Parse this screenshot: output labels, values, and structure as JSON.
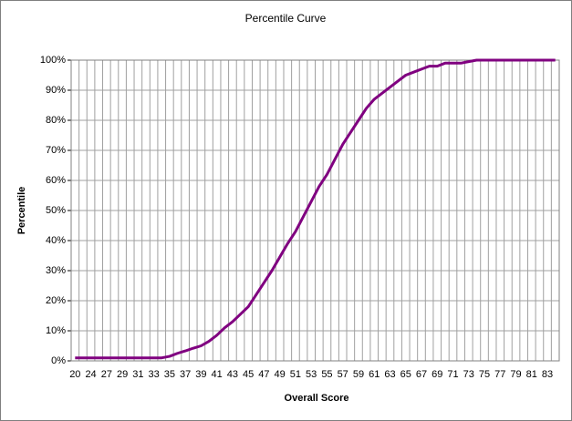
{
  "chart_data": {
    "type": "line",
    "title": "Percentile Curve",
    "x_label": "Overall Score",
    "y_label": "Percentile",
    "categories": [
      "20",
      null,
      "24",
      null,
      "27",
      null,
      "29",
      null,
      "31",
      null,
      "33",
      null,
      "35",
      null,
      "37",
      null,
      "39",
      null,
      "41",
      null,
      "43",
      null,
      "45",
      null,
      "47",
      null,
      "49",
      null,
      "51",
      null,
      "53",
      null,
      "55",
      null,
      "57",
      null,
      "59",
      null,
      "61",
      null,
      "63",
      null,
      "65",
      null,
      "67",
      null,
      "69",
      null,
      "71",
      null,
      "73",
      null,
      "75",
      null,
      "77",
      null,
      "79",
      null,
      "81",
      null,
      "83",
      null
    ],
    "values": [
      1,
      1,
      1,
      1,
      1,
      1,
      1,
      1,
      1,
      1,
      1,
      1,
      1.5,
      2.5,
      3.3,
      4.2,
      5,
      6.5,
      8.5,
      11,
      13,
      15.5,
      18,
      22,
      26,
      30,
      34.5,
      39,
      43,
      48,
      53,
      58,
      62,
      67,
      72,
      76,
      80,
      84,
      87,
      89,
      91,
      93,
      95,
      96,
      97,
      98,
      98,
      99,
      99,
      99,
      99.5,
      100,
      100,
      100,
      100,
      100,
      100,
      100,
      100,
      100,
      100,
      100
    ],
    "color": "#800080",
    "ylim": [
      0,
      100
    ],
    "yticks": [
      {
        "value": 0,
        "label": "0%"
      },
      {
        "value": 10,
        "label": "10%"
      },
      {
        "value": 20,
        "label": "20%"
      },
      {
        "value": 30,
        "label": "30%"
      },
      {
        "value": 40,
        "label": "40%"
      },
      {
        "value": 50,
        "label": "50%"
      },
      {
        "value": 60,
        "label": "60%"
      },
      {
        "value": 70,
        "label": "70%"
      },
      {
        "value": 80,
        "label": "80%"
      },
      {
        "value": 90,
        "label": "90%"
      },
      {
        "value": 100,
        "label": "100%"
      }
    ],
    "grid": true
  }
}
